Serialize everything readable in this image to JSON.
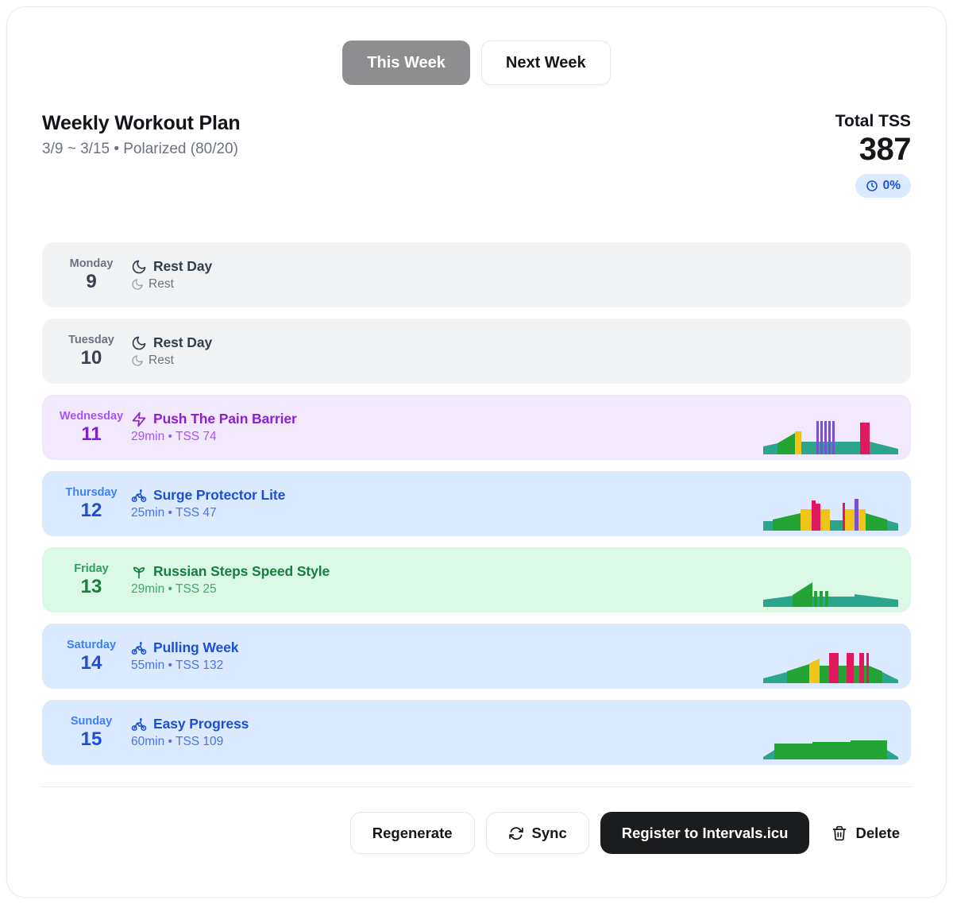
{
  "tabs": {
    "this_week": "This Week",
    "next_week": "Next Week"
  },
  "header": {
    "title": "Weekly Workout Plan",
    "subtitle": "3/9 ~ 3/15 • Polarized (80/20)",
    "total_tss_label": "Total TSS",
    "total_tss_value": "387",
    "time_progress": "0%"
  },
  "colors": {
    "active_tab_bg": "#8e8e90",
    "badge_bg": "#dbeafe",
    "badge_text": "#1d4ed8",
    "primary_button_bg": "#1b1c1e"
  },
  "themes": {
    "rest": {
      "bg": "#f1f3f5",
      "label": "#6b7280",
      "number": "#374151",
      "title": "#2f3e4e",
      "sub": "#6b7280",
      "sub_icon": "#9aa3af"
    },
    "purple": {
      "bg": "#f3e9fd",
      "label": "#a855f7",
      "number": "#7e22ce",
      "title": "#8b21d1",
      "sub": "#a855f7"
    },
    "blue": {
      "bg": "#dbeafe",
      "label": "#3b82f6",
      "number": "#1d4ed8",
      "title": "#1d4ed8",
      "sub": "#4a74e8"
    },
    "green": {
      "bg": "#dcf8e6",
      "label": "#2da05a",
      "number": "#15803d",
      "title": "#15803d",
      "sub": "#3cab66"
    }
  },
  "chart_colors": {
    "teal": "#2ca58d",
    "green": "#24a434",
    "yellow": "#f0c419",
    "purple": "#7a4fd4",
    "pink": "#e0195f"
  },
  "days": [
    {
      "name": "Monday",
      "date": "9",
      "theme": "rest",
      "icon": "moon",
      "title": "Rest Day",
      "detail": "Rest",
      "detail_icon": "moon",
      "chart": null
    },
    {
      "name": "Tuesday",
      "date": "10",
      "theme": "rest",
      "icon": "moon",
      "title": "Rest Day",
      "detail": "Rest",
      "detail_icon": "moon",
      "chart": null
    },
    {
      "name": "Wednesday",
      "date": "11",
      "theme": "purple",
      "icon": "bolt",
      "title": "Push The Pain Barrier",
      "detail": "29min • TSS 74",
      "detail_icon": null,
      "chart": [
        [
          0,
          18,
          10,
          14,
          "teal"
        ],
        [
          18,
          22,
          14,
          27,
          "green"
        ],
        [
          40,
          8,
          29,
          29,
          "yellow"
        ],
        [
          48,
          74,
          16,
          16,
          "teal"
        ],
        [
          67,
          3,
          42,
          42,
          "purple"
        ],
        [
          72,
          3,
          42,
          42,
          "purple"
        ],
        [
          77,
          3,
          42,
          42,
          "purple"
        ],
        [
          82,
          3,
          42,
          42,
          "purple"
        ],
        [
          87,
          3,
          42,
          42,
          "purple"
        ],
        [
          122,
          12,
          40,
          40,
          "pink"
        ],
        [
          134,
          36,
          16,
          7,
          "teal"
        ]
      ]
    },
    {
      "name": "Thursday",
      "date": "12",
      "theme": "blue",
      "icon": "bike",
      "title": "Surge Protector Lite",
      "detail": "25min • TSS 47",
      "detail_icon": null,
      "chart": [
        [
          0,
          12,
          12,
          12,
          "teal"
        ],
        [
          12,
          35,
          14,
          22,
          "green"
        ],
        [
          47,
          14,
          27,
          27,
          "yellow"
        ],
        [
          61,
          5,
          38,
          38,
          "pink"
        ],
        [
          66,
          6,
          34,
          34,
          "pink"
        ],
        [
          72,
          12,
          27,
          27,
          "yellow"
        ],
        [
          84,
          16,
          13,
          13,
          "teal"
        ],
        [
          100,
          3,
          35,
          35,
          "pink"
        ],
        [
          103,
          12,
          27,
          27,
          "yellow"
        ],
        [
          115,
          5,
          40,
          40,
          "purple"
        ],
        [
          120,
          9,
          27,
          27,
          "yellow"
        ],
        [
          129,
          27,
          22,
          14,
          "green"
        ],
        [
          156,
          14,
          13,
          9,
          "teal"
        ]
      ]
    },
    {
      "name": "Friday",
      "date": "13",
      "theme": "green",
      "icon": "sprout",
      "title": "Russian Steps Speed Style",
      "detail": "29min • TSS 25",
      "detail_icon": null,
      "chart": [
        [
          0,
          37,
          9,
          14,
          "teal"
        ],
        [
          37,
          25,
          15,
          31,
          "green"
        ],
        [
          62,
          53,
          13,
          13,
          "teal"
        ],
        [
          64,
          4,
          20,
          20,
          "green"
        ],
        [
          71,
          4,
          20,
          20,
          "green"
        ],
        [
          78,
          4,
          20,
          20,
          "green"
        ],
        [
          115,
          55,
          16,
          9,
          "teal"
        ]
      ]
    },
    {
      "name": "Saturday",
      "date": "14",
      "theme": "blue",
      "icon": "bike",
      "title": "Pulling Week",
      "detail": "55min • TSS 132",
      "detail_icon": null,
      "chart": [
        [
          0,
          30,
          6,
          14,
          "teal"
        ],
        [
          30,
          28,
          15,
          24,
          "green"
        ],
        [
          58,
          13,
          25,
          31,
          "yellow"
        ],
        [
          71,
          12,
          22,
          22,
          "green"
        ],
        [
          83,
          12,
          38,
          38,
          "pink"
        ],
        [
          95,
          10,
          22,
          22,
          "green"
        ],
        [
          105,
          9,
          38,
          38,
          "pink"
        ],
        [
          114,
          7,
          22,
          22,
          "green"
        ],
        [
          121,
          6,
          38,
          38,
          "pink"
        ],
        [
          127,
          3,
          22,
          22,
          "green"
        ],
        [
          130,
          3,
          38,
          38,
          "pink"
        ],
        [
          133,
          17,
          22,
          15,
          "green"
        ],
        [
          150,
          20,
          14,
          4,
          "teal"
        ]
      ]
    },
    {
      "name": "Sunday",
      "date": "15",
      "theme": "blue",
      "icon": "bike",
      "title": "Easy Progress",
      "detail": "60min • TSS 109",
      "detail_icon": null,
      "chart": [
        [
          0,
          16,
          3,
          13,
          "teal"
        ],
        [
          154,
          16,
          13,
          3,
          "teal"
        ],
        [
          14,
          48,
          20,
          20,
          "green"
        ],
        [
          62,
          48,
          22,
          22,
          "green"
        ],
        [
          110,
          46,
          24,
          24,
          "green"
        ]
      ]
    }
  ],
  "footer": {
    "regenerate": "Regenerate",
    "sync": "Sync",
    "register": "Register to Intervals.icu",
    "delete": "Delete"
  }
}
